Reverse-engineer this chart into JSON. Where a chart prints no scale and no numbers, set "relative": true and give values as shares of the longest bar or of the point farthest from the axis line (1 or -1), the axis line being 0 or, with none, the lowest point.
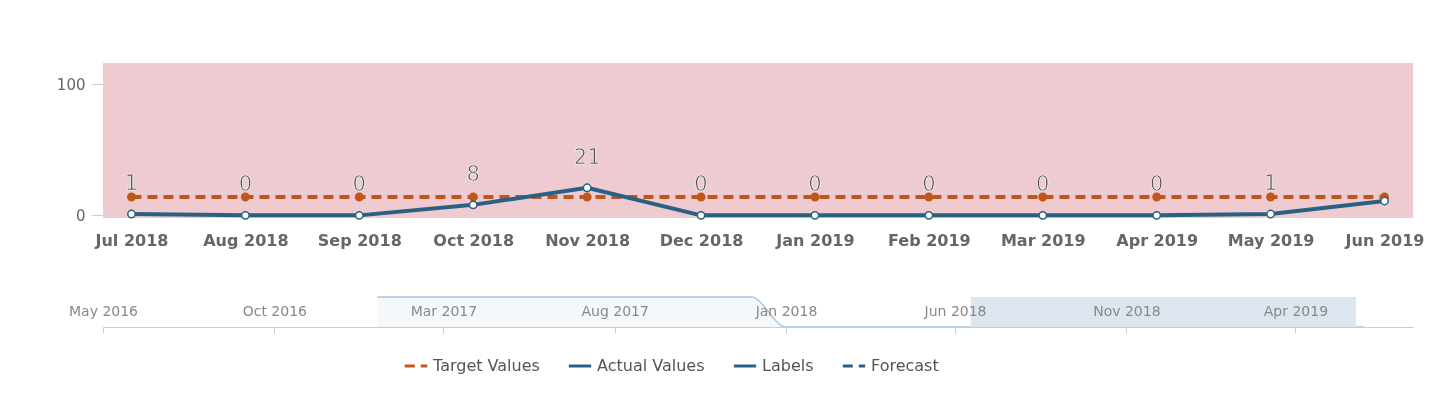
{
  "chart_data": [
    {
      "type": "line",
      "categories": [
        "Jul 2018",
        "Aug 2018",
        "Sep 2018",
        "Oct 2018",
        "Nov 2018",
        "Dec 2018",
        "Jan 2019",
        "Feb 2019",
        "Mar 2019",
        "Apr 2019",
        "May 2019",
        "Jun 2019"
      ],
      "series": [
        {
          "name": "Target Values",
          "color": "#c0571a",
          "line_style": "dashed",
          "values": [
            14,
            14,
            14,
            14,
            14,
            14,
            14,
            14,
            14,
            14,
            14,
            14
          ]
        },
        {
          "name": "Actual Values",
          "color": "#2a6183",
          "values": [
            1,
            0,
            0,
            8,
            21,
            0,
            0,
            0,
            0,
            0,
            1,
            11
          ],
          "value_labels": [
            "1",
            "0",
            "0",
            "8",
            "21",
            "0",
            "0",
            "0",
            "0",
            "0",
            "1",
            null
          ]
        },
        {
          "name": "Labels",
          "color": "#2a6183",
          "values": [
            null,
            null,
            null,
            null,
            null,
            null,
            null,
            null,
            null,
            null,
            null,
            null
          ]
        },
        {
          "name": "Forecast",
          "color": "#2a6183",
          "line_style": "dashed",
          "values": [
            null,
            null,
            null,
            null,
            null,
            null,
            null,
            null,
            null,
            null,
            null,
            null
          ]
        }
      ],
      "ylim": [
        -2,
        116
      ],
      "yticks": [
        0,
        100
      ],
      "bands": [
        {
          "axis": "y",
          "from": -2,
          "to": 116,
          "color": "#eecbd0"
        }
      ],
      "marker": "circle",
      "grid": false,
      "legend": "bottom"
    },
    {
      "type": "area",
      "relative": true,
      "x": [
        "2017-01",
        "2017-12",
        "2018-01",
        "2019-06"
      ],
      "values": [
        1,
        1,
        0,
        0
      ],
      "color": "#a9c6de",
      "xlim": [
        "2016-05",
        "2019-07-15"
      ],
      "xticks": [
        {
          "value": "2016-05",
          "label": "May 2016"
        },
        {
          "value": "2016-10",
          "label": "Oct 2016"
        },
        {
          "value": "2017-03",
          "label": "Mar 2017"
        },
        {
          "value": "2017-08",
          "label": "Aug 2017"
        },
        {
          "value": "2018-01",
          "label": "Jan 2018"
        },
        {
          "value": "2018-06",
          "label": "Jun 2018"
        },
        {
          "value": "2018-11",
          "label": "Nov 2018"
        },
        {
          "value": "2019-04",
          "label": "Apr 2019"
        }
      ],
      "bands": [
        {
          "axis": "x",
          "from": "2018-06-15",
          "to": "2019-05-25",
          "color": "#dde5ee"
        }
      ]
    }
  ]
}
